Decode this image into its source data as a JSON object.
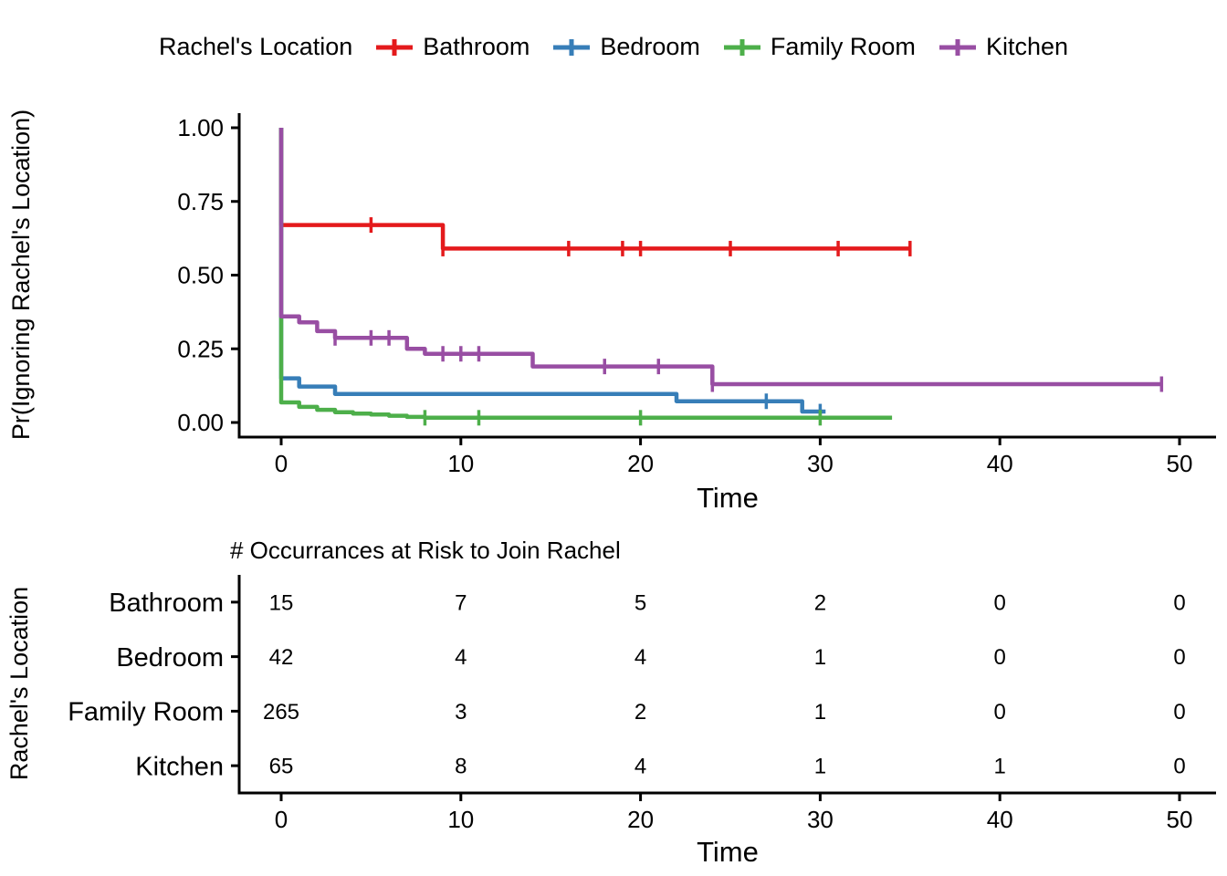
{
  "colors": {
    "bathroom": "#E41A1C",
    "bedroom": "#377EB8",
    "family_room": "#4DAF4A",
    "kitchen": "#984EA3",
    "axis": "#000000",
    "text": "#000000"
  },
  "legend": {
    "title": "Rachel's Location",
    "items": [
      {
        "label": "Bathroom",
        "color": "#E41A1C"
      },
      {
        "label": "Bedroom",
        "color": "#377EB8"
      },
      {
        "label": "Family Room",
        "color": "#4DAF4A"
      },
      {
        "label": "Kitchen",
        "color": "#984EA3"
      }
    ]
  },
  "chart_data": {
    "type": "line",
    "subtype": "kaplan-meier-step",
    "title": "",
    "xlabel": "Time",
    "ylabel": "Pr(Ignoring Rachel's Location)",
    "xlim": [
      0,
      50
    ],
    "ylim": [
      0,
      1
    ],
    "x_ticks": [
      0,
      10,
      20,
      30,
      40,
      50
    ],
    "y_tick_labels": [
      "0.00",
      "0.25",
      "0.50",
      "0.75",
      "1.00"
    ],
    "grid": false,
    "legend_position": "top",
    "series": [
      {
        "name": "Bathroom",
        "color": "#E41A1C",
        "points": [
          [
            0,
            1
          ],
          [
            0,
            0.67
          ],
          [
            9,
            0.67
          ],
          [
            9,
            0.59
          ],
          [
            35,
            0.59
          ]
        ],
        "censors": [
          [
            5,
            0.67
          ],
          [
            9,
            0.59
          ],
          [
            16,
            0.59
          ],
          [
            19,
            0.59
          ],
          [
            20,
            0.59
          ],
          [
            25,
            0.59
          ],
          [
            31,
            0.59
          ],
          [
            35,
            0.59
          ]
        ]
      },
      {
        "name": "Bedroom",
        "color": "#377EB8",
        "points": [
          [
            0,
            1
          ],
          [
            0,
            0.15
          ],
          [
            1,
            0.15
          ],
          [
            1,
            0.122
          ],
          [
            3,
            0.122
          ],
          [
            3,
            0.097
          ],
          [
            22,
            0.097
          ],
          [
            22,
            0.072
          ],
          [
            29,
            0.072
          ],
          [
            29,
            0.037
          ],
          [
            30.3,
            0.037
          ]
        ],
        "censors": [
          [
            27,
            0.072
          ],
          [
            30,
            0.037
          ]
        ]
      },
      {
        "name": "Family Room",
        "color": "#4DAF4A",
        "points": [
          [
            0,
            1
          ],
          [
            0,
            0.068
          ],
          [
            1,
            0.068
          ],
          [
            1,
            0.053
          ],
          [
            2,
            0.053
          ],
          [
            2,
            0.043
          ],
          [
            3,
            0.043
          ],
          [
            3,
            0.035
          ],
          [
            4,
            0.035
          ],
          [
            4,
            0.03
          ],
          [
            5,
            0.03
          ],
          [
            5,
            0.027
          ],
          [
            6,
            0.027
          ],
          [
            6,
            0.023
          ],
          [
            7,
            0.023
          ],
          [
            7,
            0.019
          ],
          [
            8,
            0.019
          ],
          [
            8,
            0.016
          ],
          [
            34,
            0.016
          ]
        ],
        "censors": [
          [
            8,
            0.016
          ],
          [
            11,
            0.016
          ],
          [
            20,
            0.016
          ],
          [
            30,
            0.016
          ]
        ]
      },
      {
        "name": "Kitchen",
        "color": "#984EA3",
        "points": [
          [
            0,
            1
          ],
          [
            0,
            0.36
          ],
          [
            1,
            0.36
          ],
          [
            1,
            0.34
          ],
          [
            2,
            0.34
          ],
          [
            2,
            0.31
          ],
          [
            3,
            0.31
          ],
          [
            3,
            0.287
          ],
          [
            7,
            0.287
          ],
          [
            7,
            0.25
          ],
          [
            8,
            0.25
          ],
          [
            8,
            0.233
          ],
          [
            14,
            0.233
          ],
          [
            14,
            0.19
          ],
          [
            24,
            0.19
          ],
          [
            24,
            0.13
          ],
          [
            49,
            0.13
          ]
        ],
        "censors": [
          [
            3,
            0.287
          ],
          [
            5,
            0.287
          ],
          [
            6,
            0.287
          ],
          [
            9,
            0.233
          ],
          [
            10,
            0.233
          ],
          [
            11,
            0.233
          ],
          [
            18,
            0.19
          ],
          [
            21,
            0.19
          ],
          [
            24,
            0.13
          ],
          [
            49,
            0.13
          ]
        ]
      }
    ]
  },
  "risk_table": {
    "title": "# Occurrances at Risk to Join Rachel",
    "ylabel": "Rachel's Location",
    "xlabel": "Time",
    "x_ticks": [
      0,
      10,
      20,
      30,
      40,
      50
    ],
    "rows": [
      {
        "label": "Bathroom",
        "color": "#E41A1C",
        "values": [
          15,
          7,
          5,
          2,
          0,
          0
        ]
      },
      {
        "label": "Bedroom",
        "color": "#377EB8",
        "values": [
          42,
          4,
          4,
          1,
          0,
          0
        ]
      },
      {
        "label": "Family Room",
        "color": "#4DAF4A",
        "values": [
          265,
          3,
          2,
          1,
          0,
          0
        ]
      },
      {
        "label": "Kitchen",
        "color": "#984EA3",
        "values": [
          65,
          8,
          4,
          1,
          1,
          0
        ]
      }
    ]
  }
}
